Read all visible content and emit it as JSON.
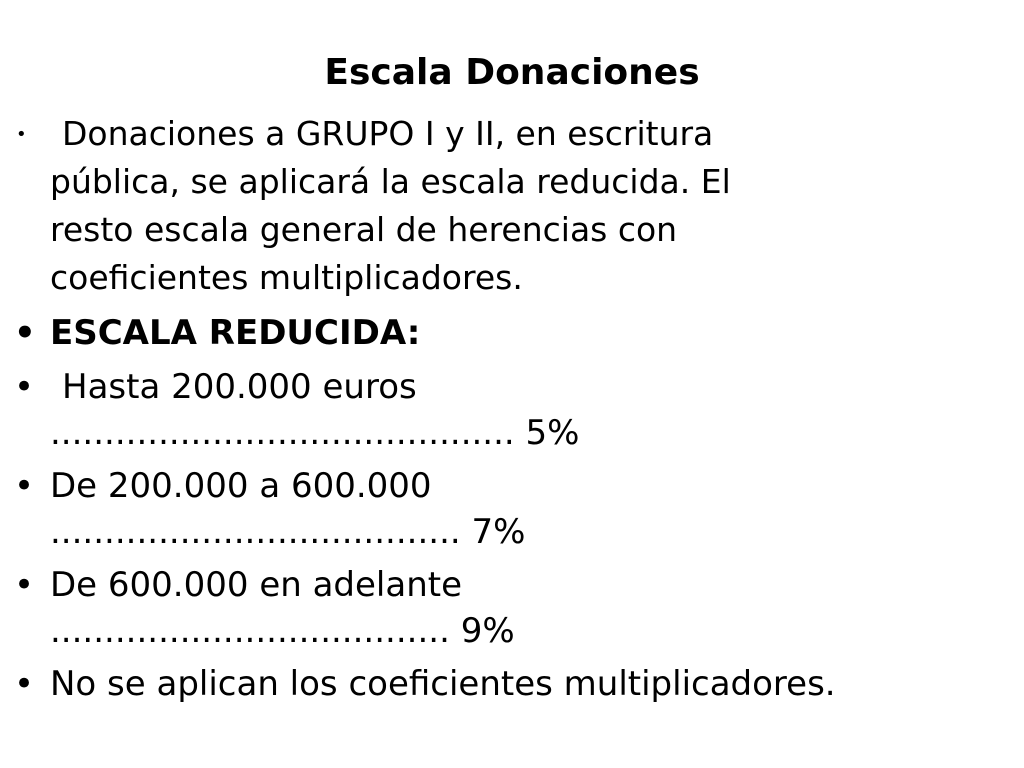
{
  "slide": {
    "title": "Escala Donaciones",
    "bullets": [
      {
        "lines": [
          "Donaciones a GRUPO I y II, en escritura",
          "pública, se aplicará la escala reducida. El",
          "resto escala general de herencias con",
          "coeficientes multiplicadores."
        ]
      },
      {
        "text": "ESCALA REDUCIDA:"
      },
      {
        "line1": "Hasta 200.000 euros",
        "line2": "........................................... 5%"
      },
      {
        "line1": "De 200.000 a 600.000",
        "line2": "...................................... 7%"
      },
      {
        "line1": "De 600.000 en adelante",
        "line2": "..................................... 9%"
      },
      {
        "text": "No se aplican los coeficientes multiplicadores."
      }
    ]
  }
}
